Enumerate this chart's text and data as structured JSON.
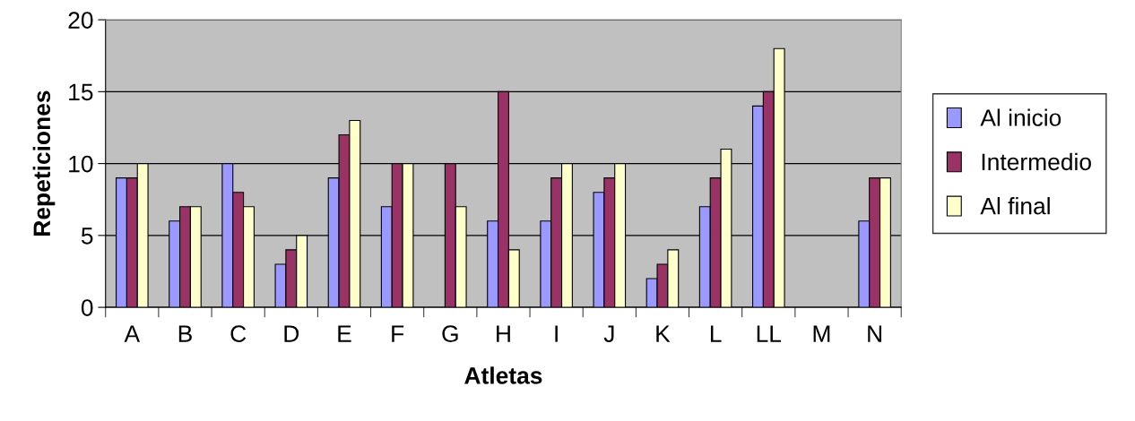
{
  "chart_data": {
    "type": "bar",
    "xlabel": "Atletas",
    "ylabel": "Repeticiones",
    "categories": [
      "A",
      "B",
      "C",
      "D",
      "E",
      "F",
      "G",
      "H",
      "I",
      "J",
      "K",
      "L",
      "LL",
      "M",
      "N"
    ],
    "series": [
      {
        "name": "Al inicio",
        "color": "#9999ff",
        "values": [
          9,
          6,
          10,
          3,
          9,
          7,
          null,
          6,
          6,
          8,
          2,
          7,
          14,
          null,
          6
        ]
      },
      {
        "name": "Intermedio",
        "color": "#993366",
        "values": [
          9,
          7,
          8,
          4,
          12,
          10,
          10,
          15,
          9,
          9,
          3,
          9,
          15,
          null,
          9
        ]
      },
      {
        "name": "Al final",
        "color": "#ffffcc",
        "values": [
          10,
          7,
          7,
          5,
          13,
          10,
          7,
          4,
          10,
          10,
          4,
          11,
          18,
          null,
          9
        ]
      }
    ],
    "ylim": [
      0,
      20
    ],
    "yticks": [
      0,
      5,
      10,
      15,
      20
    ],
    "grid": "y",
    "legend": "right"
  }
}
